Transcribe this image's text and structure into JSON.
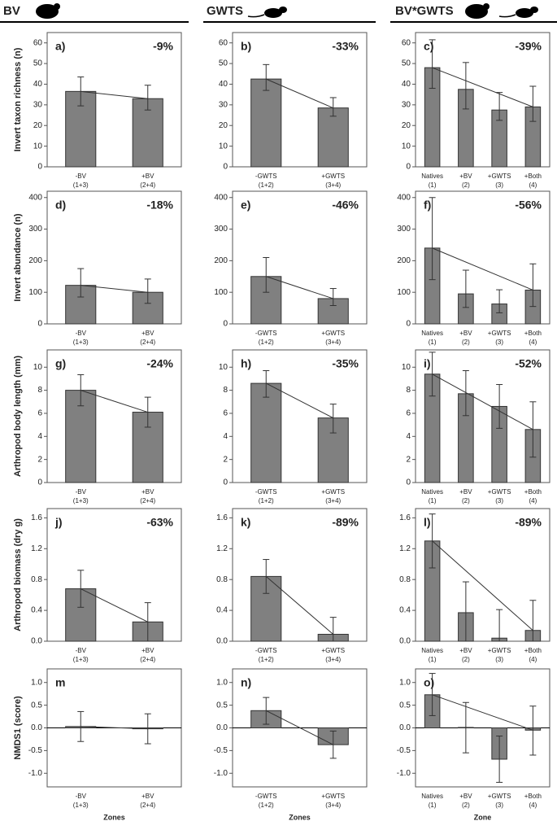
{
  "column_headers": [
    "BV",
    "GWTS",
    "BV*GWTS"
  ],
  "chart_data": [
    {
      "type": "bar",
      "panel_label": "a)",
      "annotation": "-9%",
      "ylabel": "Invert taxon richness (n)",
      "categories": [
        "-BV",
        "+BV"
      ],
      "category_notes": [
        "(1+3)",
        "(2+4)"
      ],
      "values": [
        36.5,
        33
      ],
      "err_minus": [
        7,
        5.5
      ],
      "err_plus": [
        7,
        6.5
      ],
      "color": "#808080",
      "ylim": [
        0,
        65
      ],
      "yticks": [
        0,
        10,
        20,
        30,
        40,
        50,
        60
      ]
    },
    {
      "type": "bar",
      "panel_label": "b)",
      "annotation": "-33%",
      "categories": [
        "-GWTS",
        "+GWTS"
      ],
      "category_notes": [
        "(1+2)",
        "(3+4)"
      ],
      "values": [
        42.5,
        28.5
      ],
      "err_minus": [
        5.5,
        4
      ],
      "err_plus": [
        7,
        5
      ],
      "color": "#808080",
      "ylim": [
        0,
        65
      ],
      "yticks": [
        0,
        10,
        20,
        30,
        40,
        50,
        60
      ]
    },
    {
      "type": "bar",
      "panel_label": "c)",
      "annotation": "-39%",
      "categories": [
        "Natives",
        "+BV",
        "+GWTS",
        "+Both"
      ],
      "category_notes": [
        "(1)",
        "(2)",
        "(3)",
        "(4)"
      ],
      "values": [
        48,
        37.5,
        27.5,
        29
      ],
      "err_minus": [
        10,
        9.5,
        5,
        7
      ],
      "err_plus": [
        13.5,
        13,
        8.5,
        10
      ],
      "color": "#808080",
      "ylim": [
        0,
        65
      ],
      "yticks": [
        0,
        10,
        20,
        30,
        40,
        50,
        60
      ]
    },
    {
      "type": "bar",
      "panel_label": "d)",
      "annotation": "-18%",
      "ylabel": "Invert abundance (n)",
      "categories": [
        "-BV",
        "+BV"
      ],
      "category_notes": [
        "(1+3)",
        "(2+4)"
      ],
      "values": [
        122,
        100
      ],
      "err_minus": [
        37,
        35
      ],
      "err_plus": [
        53,
        42
      ],
      "color": "#808080",
      "ylim": [
        0,
        420
      ],
      "yticks": [
        0,
        100,
        200,
        300,
        400
      ]
    },
    {
      "type": "bar",
      "panel_label": "e)",
      "annotation": "-46%",
      "categories": [
        "-GWTS",
        "+GWTS"
      ],
      "category_notes": [
        "(1+2)",
        "(3+4)"
      ],
      "values": [
        150,
        80
      ],
      "err_minus": [
        50,
        22
      ],
      "err_plus": [
        60,
        32
      ],
      "color": "#808080",
      "ylim": [
        0,
        420
      ],
      "yticks": [
        0,
        100,
        200,
        300,
        400
      ]
    },
    {
      "type": "bar",
      "panel_label": "f)",
      "annotation": "-56%",
      "categories": [
        "Natives",
        "+BV",
        "+GWTS",
        "+Both"
      ],
      "category_notes": [
        "(1)",
        "(2)",
        "(3)",
        "(4)"
      ],
      "values": [
        240,
        95,
        63,
        107
      ],
      "err_minus": [
        100,
        43,
        28,
        52
      ],
      "err_plus": [
        160,
        75,
        45,
        83
      ],
      "color": "#808080",
      "ylim": [
        0,
        420
      ],
      "yticks": [
        0,
        100,
        200,
        300,
        400
      ]
    },
    {
      "type": "bar",
      "panel_label": "g)",
      "annotation": "-24%",
      "ylabel": "Arthropod body length (mm)",
      "categories": [
        "-BV",
        "+BV"
      ],
      "category_notes": [
        "(1+3)",
        "(2+4)"
      ],
      "values": [
        8,
        6.1
      ],
      "err_minus": [
        1.35,
        1.3
      ],
      "err_plus": [
        1.35,
        1.3
      ],
      "color": "#808080",
      "ylim": [
        0,
        11.5
      ],
      "yticks": [
        0,
        2,
        4,
        6,
        8,
        10
      ]
    },
    {
      "type": "bar",
      "panel_label": "h)",
      "annotation": "-35%",
      "categories": [
        "-GWTS",
        "+GWTS"
      ],
      "category_notes": [
        "(1+2)",
        "(3+4)"
      ],
      "values": [
        8.6,
        5.6
      ],
      "err_minus": [
        1.2,
        1.3
      ],
      "err_plus": [
        1.1,
        1.2
      ],
      "color": "#808080",
      "ylim": [
        0,
        11.5
      ],
      "yticks": [
        0,
        2,
        4,
        6,
        8,
        10
      ]
    },
    {
      "type": "bar",
      "panel_label": "i)",
      "annotation": "-52%",
      "categories": [
        "Natives",
        "+BV",
        "+GWTS",
        "+Both"
      ],
      "category_notes": [
        "(1)",
        "(2)",
        "(3)",
        "(4)"
      ],
      "values": [
        9.4,
        7.7,
        6.6,
        4.6
      ],
      "err_minus": [
        1.9,
        1.9,
        1.9,
        2.4
      ],
      "err_plus": [
        1.9,
        2,
        1.9,
        2.4
      ],
      "color": "#808080",
      "ylim": [
        0,
        11.5
      ],
      "yticks": [
        0,
        2,
        4,
        6,
        8,
        10
      ]
    },
    {
      "type": "bar",
      "panel_label": "j)",
      "annotation": "-63%",
      "ylabel": "Arthropod biomass (dry g)",
      "categories": [
        "-BV",
        "+BV"
      ],
      "category_notes": [
        "(1+3)",
        "(2+4)"
      ],
      "values": [
        0.68,
        0.25
      ],
      "err_minus": [
        0.24,
        0.25
      ],
      "err_plus": [
        0.24,
        0.25
      ],
      "color": "#808080",
      "ylim": [
        0,
        1.72
      ],
      "yticks": [
        {
          "value": 0,
          "label": "0.0"
        },
        0.4,
        0.8,
        1.2,
        1.6
      ]
    },
    {
      "type": "bar",
      "panel_label": "k)",
      "annotation": "-89%",
      "categories": [
        "-GWTS",
        "+GWTS"
      ],
      "category_notes": [
        "(1+2)",
        "(3+4)"
      ],
      "values": [
        0.84,
        0.09
      ],
      "err_minus": [
        0.22,
        0.09
      ],
      "err_plus": [
        0.22,
        0.22
      ],
      "color": "#808080",
      "ylim": [
        0,
        1.72
      ],
      "yticks": [
        {
          "value": 0,
          "label": "0.0"
        },
        0.4,
        0.8,
        1.2,
        1.6
      ]
    },
    {
      "type": "bar",
      "panel_label": "l)",
      "annotation": "-89%",
      "categories": [
        "Natives",
        "+BV",
        "+GWTS",
        "+Both"
      ],
      "category_notes": [
        "(1)",
        "(2)",
        "(3)",
        "(4)"
      ],
      "values": [
        1.3,
        0.37,
        0.04,
        0.14
      ],
      "err_minus": [
        0.35,
        0.37,
        0.04,
        0.14
      ],
      "err_plus": [
        0.35,
        0.4,
        0.37,
        0.39
      ],
      "color": "#808080",
      "ylim": [
        0,
        1.72
      ],
      "yticks": [
        {
          "value": 0,
          "label": "0.0"
        },
        0.4,
        0.8,
        1.2,
        1.6
      ]
    },
    {
      "type": "bar",
      "panel_label": "m",
      "ylabel": "NMDS1 (score)",
      "xlabel": "Zones",
      "categories": [
        "-BV",
        "+BV"
      ],
      "category_notes": [
        "(1+3)",
        "(2+4)"
      ],
      "values": [
        0.03,
        -0.02
      ],
      "err_minus": [
        0.33,
        0.33
      ],
      "err_plus": [
        0.33,
        0.33
      ],
      "color": "#808080",
      "ylim": [
        -1.3,
        1.3
      ],
      "yticks": [
        {
          "value": -1,
          "label": "-1.0"
        },
        -0.5,
        {
          "value": 0,
          "label": "0.0"
        },
        0.5,
        {
          "value": 1,
          "label": "1.0"
        }
      ]
    },
    {
      "type": "bar",
      "panel_label": "n)",
      "xlabel": "Zones",
      "categories": [
        "-GWTS",
        "+GWTS"
      ],
      "category_notes": [
        "(1+2)",
        "(3+4)"
      ],
      "values": [
        0.38,
        -0.37
      ],
      "err_minus": [
        0.3,
        0.3
      ],
      "err_plus": [
        0.29,
        0.3
      ],
      "color": "#808080",
      "ylim": [
        -1.3,
        1.3
      ],
      "yticks": [
        {
          "value": -1,
          "label": "-1.0"
        },
        -0.5,
        {
          "value": 0,
          "label": "0.0"
        },
        0.5,
        {
          "value": 1,
          "label": "1.0"
        }
      ]
    },
    {
      "type": "bar",
      "panel_label": "o)",
      "xlabel": "Zone",
      "categories": [
        "Natives",
        "+BV",
        "+GWTS",
        "+Both"
      ],
      "category_notes": [
        "(1)",
        "(2)",
        "(3)",
        "(4)"
      ],
      "values": [
        0.73,
        0.01,
        -0.69,
        -0.05
      ],
      "err_minus": [
        0.46,
        0.56,
        0.51,
        0.55
      ],
      "err_plus": [
        0.47,
        0.55,
        0.51,
        0.53
      ],
      "color": "#808080",
      "ylim": [
        -1.3,
        1.3
      ],
      "yticks": [
        {
          "value": -1,
          "label": "-1.0"
        },
        -0.5,
        {
          "value": 0,
          "label": "0.0"
        },
        0.5,
        {
          "value": 1,
          "label": "1.0"
        }
      ]
    }
  ]
}
